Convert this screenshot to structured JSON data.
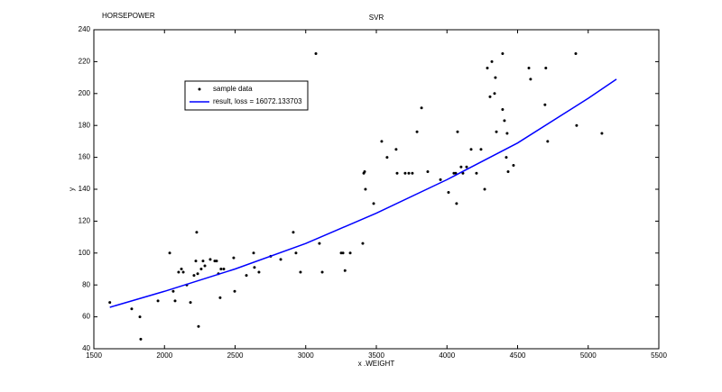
{
  "chart_data": {
    "type": "scatter",
    "title": "SVR",
    "annotation": "HORSEPOWER",
    "x_label": "x .WEIGHT",
    "y_label": "y",
    "xlim": [
      1500,
      5500
    ],
    "xticks": [
      1500,
      2000,
      2500,
      3000,
      3500,
      4000,
      4500,
      5000,
      5500
    ],
    "ylim": [
      40,
      240
    ],
    "yticks": [
      40,
      60,
      80,
      100,
      120,
      140,
      160,
      180,
      200,
      220,
      240
    ],
    "legend": "upper left",
    "series": [
      {
        "name": "sample data",
        "color": "#000000",
        "kind": "points",
        "x": [
          1613,
          1768,
          1826,
          1832,
          1954,
          2037,
          2062,
          2075,
          2100,
          2120,
          2133,
          2158,
          2184,
          2209,
          2222,
          2228,
          2235,
          2241,
          2260,
          2273,
          2286,
          2324,
          2356,
          2369,
          2382,
          2394,
          2400,
          2420,
          2490,
          2497,
          2580,
          2631,
          2637,
          2669,
          2752,
          2823,
          2912,
          2931,
          2963,
          3072,
          3097,
          3117,
          3251,
          3264,
          3278,
          3315,
          3404,
          3411,
          3417,
          3423,
          3481,
          3538,
          3576,
          3640,
          3647,
          3704,
          3730,
          3755,
          3788,
          3820,
          3864,
          3954,
          4011,
          4049,
          4062,
          4068,
          4075,
          4100,
          4113,
          4139,
          4171,
          4209,
          4241,
          4267,
          4286,
          4305,
          4318,
          4337,
          4343,
          4350,
          4394,
          4394,
          4407,
          4420,
          4426,
          4433,
          4471,
          4580,
          4592,
          4694,
          4700,
          4713,
          4912,
          4918,
          5097
        ],
        "values": [
          69,
          65,
          60,
          46,
          70,
          100,
          76,
          70,
          88,
          90,
          88,
          80,
          69,
          86,
          95,
          113,
          87,
          54,
          90,
          95,
          92,
          96,
          95,
          95,
          87,
          72,
          90,
          90,
          97,
          76,
          86,
          100,
          91,
          88,
          98,
          96,
          113,
          100,
          88,
          225,
          106,
          88,
          100,
          100,
          89,
          100,
          106,
          150,
          151,
          140,
          131,
          170,
          160,
          165,
          150,
          150,
          150,
          150,
          176,
          191,
          151,
          146,
          138,
          150,
          150,
          131,
          176,
          154,
          150,
          154,
          165,
          150,
          165,
          140,
          216,
          198,
          220,
          200,
          210,
          176,
          225,
          190,
          183,
          160,
          175,
          151,
          155,
          216,
          209,
          193,
          216,
          170,
          225,
          180,
          175
        ]
      },
      {
        "name": "result, loss = 16072.133703",
        "color": "#0000ff",
        "kind": "line",
        "x": [
          1613,
          2000,
          2500,
          3000,
          3500,
          4000,
          4500,
          5000,
          5200
        ],
        "values": [
          66,
          76,
          90,
          106,
          125,
          146,
          169,
          197,
          209
        ]
      }
    ]
  }
}
